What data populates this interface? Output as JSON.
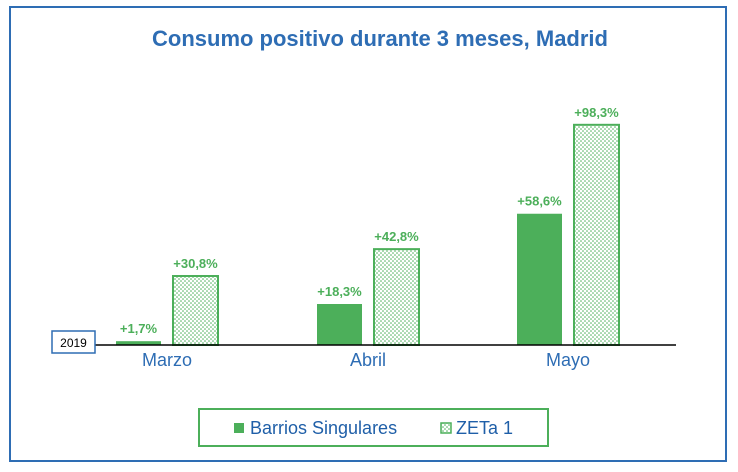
{
  "chart_data": {
    "type": "bar",
    "title": "Consumo positivo durante 3 meses, Madrid",
    "baseline_label": "2019",
    "categories": [
      "Marzo",
      "Abril",
      "Mayo"
    ],
    "series": [
      {
        "name": "Barrios Singulares",
        "values": [
          1.7,
          18.3,
          58.6
        ],
        "labels": [
          "+1,7%",
          "+18,3%",
          "+58,6%"
        ],
        "pattern": "solid"
      },
      {
        "name": "ZETa 1",
        "values": [
          30.8,
          42.8,
          98.3
        ],
        "labels": [
          "+30,8%",
          "+42,8%",
          "+98,3%"
        ],
        "pattern": "dotted"
      }
    ],
    "ylim": [
      0,
      100
    ],
    "grid": false,
    "legend_position": "bottom",
    "xlabel": "",
    "ylabel": ""
  },
  "colors": {
    "title": "#2e6db4",
    "category_labels": "#2e6db4",
    "series_green": "#4caf5a",
    "data_labels": "#4caf5a",
    "legend_border": "#4caf5a",
    "frame_border": "#2e6db4",
    "baseline_box": "#2e6db4"
  }
}
